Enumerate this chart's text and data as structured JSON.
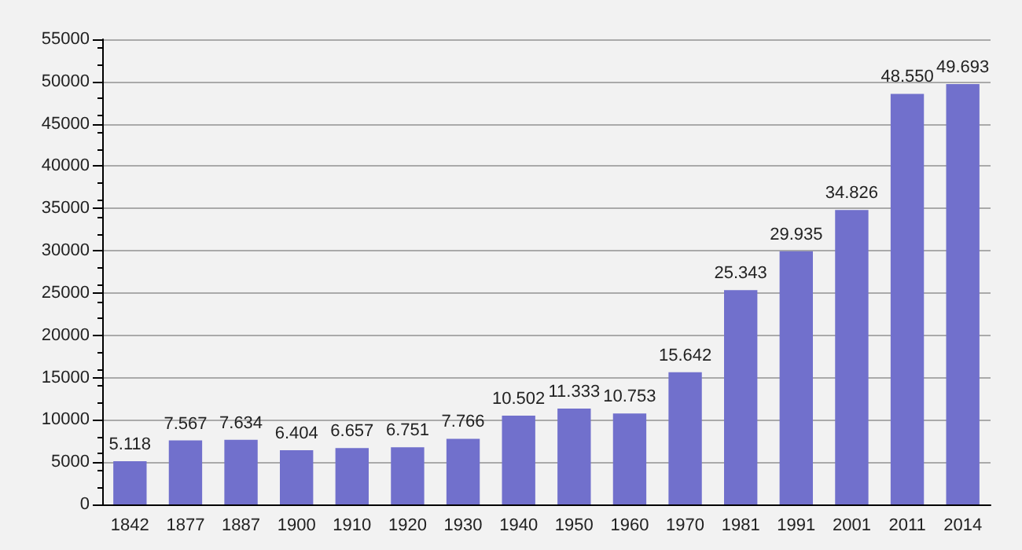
{
  "chart_data": {
    "type": "bar",
    "categories": [
      "1842",
      "1877",
      "1887",
      "1900",
      "1910",
      "1920",
      "1930",
      "1940",
      "1950",
      "1960",
      "1970",
      "1981",
      "1991",
      "2001",
      "2011",
      "2014"
    ],
    "values": [
      5118,
      7567,
      7634,
      6404,
      6657,
      6751,
      7766,
      10502,
      11333,
      10753,
      15642,
      25343,
      29935,
      34826,
      48550,
      49693
    ],
    "value_labels": [
      "5.118",
      "7.567",
      "7.634",
      "6.404",
      "6.657",
      "6.751",
      "7.766",
      "10.502",
      "11.333",
      "10.753",
      "15.642",
      "25.343",
      "29.935",
      "34.826",
      "48.550",
      "49.693"
    ],
    "color": "#7170cc",
    "ylim": [
      0,
      55000
    ],
    "yticks": [
      0,
      5000,
      10000,
      15000,
      20000,
      25000,
      30000,
      35000,
      40000,
      45000,
      50000,
      55000
    ],
    "grid": "y"
  }
}
